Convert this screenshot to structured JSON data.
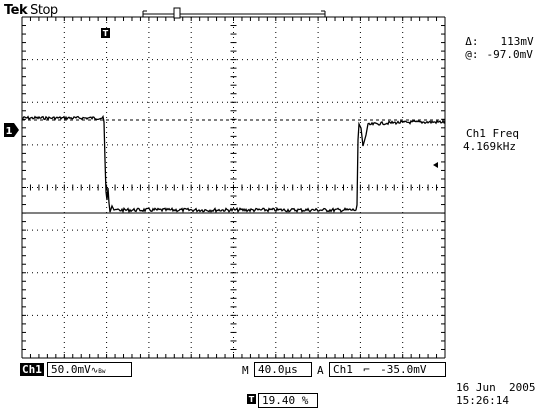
{
  "header": {
    "brand": "Tek",
    "run_state": "Stop"
  },
  "cursor_readout": {
    "delta_label": "Δ:",
    "delta_value": "113mV",
    "at_label": "@:",
    "at_value": "-97.0mV"
  },
  "measurement": {
    "label": "Ch1 Freq",
    "value": "4.169kHz"
  },
  "channel": {
    "marker": "1",
    "name": "Ch1",
    "volts_per_div": "50.0mV"
  },
  "timebase": {
    "prefix": "M",
    "sec_per_div": "40.0µs"
  },
  "trigger": {
    "mode": "A",
    "source": "Ch1",
    "level": "-35.0mV",
    "position": "19.40 %"
  },
  "datetime": {
    "date": "16 Jun  2005",
    "time": "15:26:14"
  },
  "colors": {
    "trace": "#000000",
    "graticule": "#000000",
    "background": "#ffffff"
  }
}
